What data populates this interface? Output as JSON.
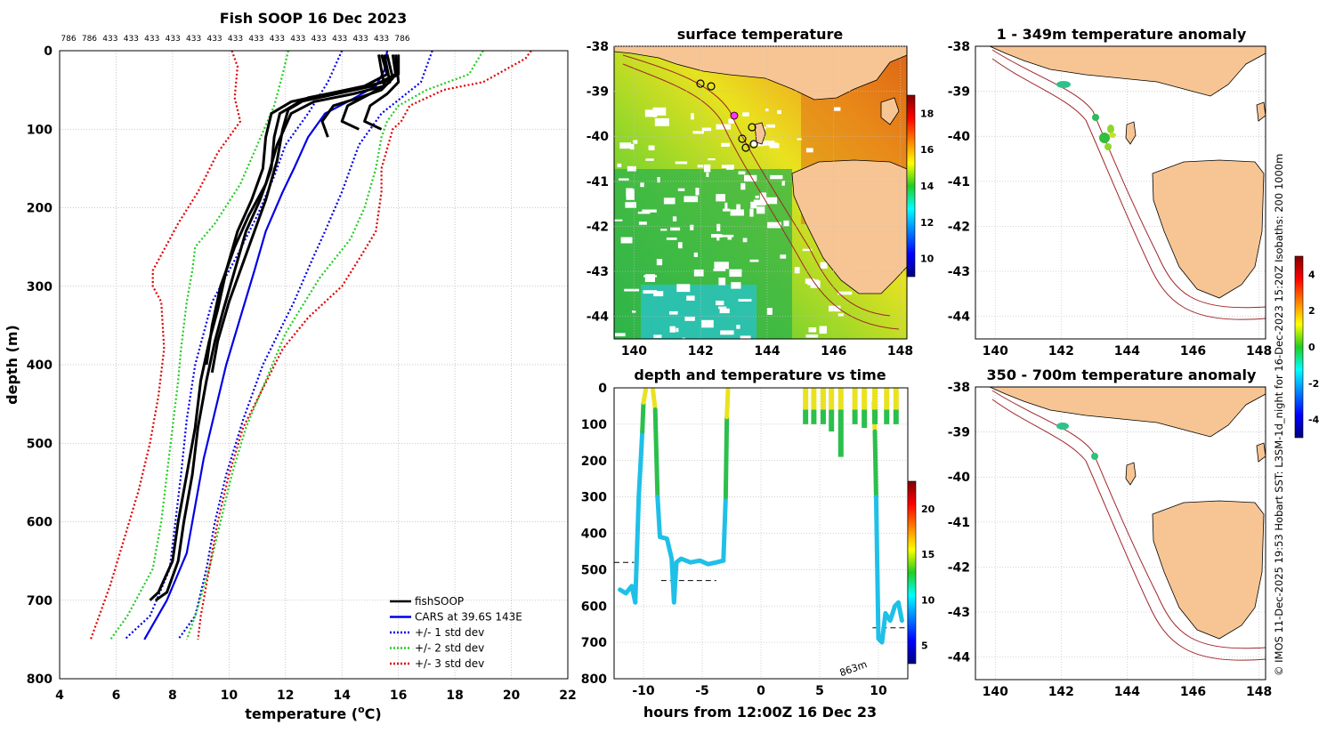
{
  "chart_data": [
    {
      "type": "line",
      "title": "Fish SOOP 16 Dec 2023",
      "top_counts": [
        "786",
        "786",
        "433",
        "433",
        "433",
        "433",
        "433",
        "433",
        "433",
        "433",
        "433",
        "433",
        "433",
        "433",
        "433",
        "433",
        "786"
      ],
      "xlabel": "temperature (",
      "xlabel_sup": "o",
      "xlabel_tail": "C)",
      "ylabel": "depth (m)",
      "xlim": [
        4,
        22
      ],
      "ylim": [
        0,
        800
      ],
      "xticks": [
        "4",
        "6",
        "8",
        "10",
        "12",
        "14",
        "16",
        "18",
        "20",
        "22"
      ],
      "yticks": [
        "0",
        "100",
        "200",
        "300",
        "400",
        "500",
        "600",
        "700",
        "800"
      ],
      "legend": [
        {
          "label": "fishSOOP",
          "color": "#000000",
          "style": "solid"
        },
        {
          "label": "CARS at 39.6S 143E",
          "color": "#0000e6",
          "style": "solid"
        },
        {
          "label": "+/- 1 std dev",
          "color": "#0000e6",
          "style": "dotted"
        },
        {
          "label": "+/- 2 std dev",
          "color": "#22cc22",
          "style": "dotted"
        },
        {
          "label": "+/- 3 std dev",
          "color": "#e00000",
          "style": "dotted"
        }
      ],
      "series": [
        {
          "name": "CARS mean",
          "color": "#0000e6",
          "style": "solid",
          "points": [
            [
              15.6,
              0
            ],
            [
              15.5,
              25
            ],
            [
              15.2,
              45
            ],
            [
              14.2,
              65
            ],
            [
              13.4,
              80
            ],
            [
              12.8,
              110
            ],
            [
              12.3,
              150
            ],
            [
              11.9,
              180
            ],
            [
              11.3,
              230
            ],
            [
              10.9,
              280
            ],
            [
              10.4,
              340
            ],
            [
              9.9,
              400
            ],
            [
              9.5,
              460
            ],
            [
              9.1,
              520
            ],
            [
              8.8,
              580
            ],
            [
              8.5,
              640
            ],
            [
              7.8,
              700
            ],
            [
              7.0,
              750
            ]
          ]
        },
        {
          "name": "+1 std",
          "color": "#0000e6",
          "style": "dotted",
          "points": [
            [
              17.2,
              0
            ],
            [
              16.8,
              40
            ],
            [
              15.4,
              80
            ],
            [
              14.6,
              120
            ],
            [
              14.0,
              180
            ],
            [
              13.4,
              230
            ],
            [
              12.9,
              270
            ],
            [
              12.3,
              320
            ],
            [
              11.2,
              400
            ],
            [
              10.5,
              470
            ],
            [
              9.9,
              540
            ],
            [
              9.5,
              600
            ],
            [
              9.2,
              660
            ],
            [
              8.8,
              720
            ],
            [
              8.2,
              750
            ]
          ]
        },
        {
          "name": "-1 std",
          "color": "#0000e6",
          "style": "dotted",
          "points": [
            [
              14.0,
              0
            ],
            [
              13.5,
              40
            ],
            [
              12.8,
              80
            ],
            [
              12.0,
              120
            ],
            [
              11.6,
              160
            ],
            [
              11.0,
              210
            ],
            [
              10.3,
              260
            ],
            [
              9.4,
              320
            ],
            [
              8.8,
              400
            ],
            [
              8.5,
              470
            ],
            [
              8.3,
              540
            ],
            [
              8.1,
              600
            ],
            [
              7.9,
              660
            ],
            [
              7.2,
              720
            ],
            [
              6.3,
              750
            ]
          ]
        },
        {
          "name": "+2 std",
          "color": "#22cc22",
          "style": "dotted",
          "points": [
            [
              19.0,
              0
            ],
            [
              18.5,
              30
            ],
            [
              17.0,
              50
            ],
            [
              16.0,
              70
            ],
            [
              15.6,
              90
            ],
            [
              15.4,
              110
            ],
            [
              15.2,
              150
            ],
            [
              14.8,
              200
            ],
            [
              14.3,
              240
            ],
            [
              13.2,
              290
            ],
            [
              12.0,
              360
            ],
            [
              11.3,
              420
            ],
            [
              10.6,
              480
            ],
            [
              10.1,
              540
            ],
            [
              9.7,
              600
            ],
            [
              9.3,
              660
            ],
            [
              8.8,
              720
            ],
            [
              8.5,
              750
            ]
          ]
        },
        {
          "name": "-2 std",
          "color": "#22cc22",
          "style": "dotted",
          "points": [
            [
              12.1,
              0
            ],
            [
              11.9,
              30
            ],
            [
              11.6,
              70
            ],
            [
              11.0,
              120
            ],
            [
              10.4,
              170
            ],
            [
              9.5,
              220
            ],
            [
              8.8,
              250
            ],
            [
              8.7,
              280
            ],
            [
              8.5,
              320
            ],
            [
              8.3,
              380
            ],
            [
              8.2,
              420
            ],
            [
              8.0,
              480
            ],
            [
              7.8,
              540
            ],
            [
              7.6,
              600
            ],
            [
              7.3,
              660
            ],
            [
              6.4,
              720
            ],
            [
              5.8,
              750
            ]
          ]
        },
        {
          "name": "+3 std",
          "color": "#e00000",
          "style": "dotted",
          "points": [
            [
              20.7,
              0
            ],
            [
              20.5,
              10
            ],
            [
              19.0,
              40
            ],
            [
              17.6,
              50
            ],
            [
              16.4,
              70
            ],
            [
              16.1,
              90
            ],
            [
              15.8,
              100
            ],
            [
              15.4,
              150
            ],
            [
              15.4,
              180
            ],
            [
              15.2,
              230
            ],
            [
              14.7,
              260
            ],
            [
              14.0,
              300
            ],
            [
              12.8,
              340
            ],
            [
              11.9,
              380
            ],
            [
              11.2,
              430
            ],
            [
              10.5,
              480
            ],
            [
              10.0,
              540
            ],
            [
              9.6,
              600
            ],
            [
              9.3,
              660
            ],
            [
              9.0,
              720
            ],
            [
              8.9,
              750
            ]
          ]
        },
        {
          "name": "-3 std",
          "color": "#e00000",
          "style": "dotted",
          "points": [
            [
              10.1,
              0
            ],
            [
              10.3,
              20
            ],
            [
              10.2,
              60
            ],
            [
              10.4,
              90
            ],
            [
              9.6,
              130
            ],
            [
              8.9,
              180
            ],
            [
              8.2,
              220
            ],
            [
              7.6,
              260
            ],
            [
              7.3,
              280
            ],
            [
              7.3,
              300
            ],
            [
              7.6,
              320
            ],
            [
              7.7,
              380
            ],
            [
              7.5,
              440
            ],
            [
              7.2,
              500
            ],
            [
              6.8,
              560
            ],
            [
              6.3,
              620
            ],
            [
              5.8,
              680
            ],
            [
              5.1,
              750
            ]
          ]
        },
        {
          "name": "fishSOOP cast A",
          "color": "#000000",
          "style": "solid",
          "points": [
            [
              15.4,
              5
            ],
            [
              15.6,
              30
            ],
            [
              14.8,
              45
            ],
            [
              13.5,
              55
            ],
            [
              12.2,
              65
            ],
            [
              11.5,
              80
            ],
            [
              11.3,
              110
            ],
            [
              11.2,
              150
            ],
            [
              10.8,
              190
            ],
            [
              10.3,
              230
            ],
            [
              9.9,
              280
            ],
            [
              9.6,
              330
            ],
            [
              9.3,
              370
            ],
            [
              9.0,
              420
            ],
            [
              8.8,
              480
            ],
            [
              8.5,
              540
            ],
            [
              8.2,
              600
            ],
            [
              8.0,
              650
            ],
            [
              7.5,
              690
            ],
            [
              7.2,
              700
            ]
          ]
        },
        {
          "name": "fishSOOP cast B",
          "color": "#000000",
          "style": "solid",
          "points": [
            [
              15.8,
              5
            ],
            [
              15.9,
              30
            ],
            [
              15.1,
              45
            ],
            [
              13.8,
              55
            ],
            [
              12.5,
              65
            ],
            [
              11.8,
              80
            ],
            [
              11.6,
              110
            ],
            [
              11.5,
              150
            ],
            [
              11.1,
              190
            ],
            [
              10.6,
              230
            ],
            [
              10.2,
              280
            ],
            [
              9.8,
              330
            ],
            [
              9.5,
              370
            ],
            [
              9.2,
              420
            ],
            [
              8.9,
              480
            ],
            [
              8.7,
              540
            ],
            [
              8.4,
              600
            ],
            [
              8.2,
              650
            ],
            [
              7.8,
              690
            ],
            [
              7.4,
              700
            ]
          ]
        },
        {
          "name": "fishSOOP cast C",
          "color": "#000000",
          "style": "solid",
          "points": [
            [
              16.0,
              5
            ],
            [
              16.0,
              30
            ],
            [
              15.5,
              40
            ],
            [
              14.2,
              50
            ],
            [
              12.8,
              60
            ],
            [
              12.1,
              75
            ],
            [
              11.9,
              100
            ],
            [
              11.7,
              140
            ],
            [
              11.3,
              190
            ],
            [
              10.9,
              230
            ],
            [
              10.5,
              270
            ],
            [
              10.0,
              320
            ],
            [
              9.6,
              370
            ],
            [
              9.4,
              410
            ]
          ]
        },
        {
          "name": "fishSOOP cast D",
          "color": "#000000",
          "style": "solid",
          "points": [
            [
              15.6,
              5
            ],
            [
              15.8,
              35
            ],
            [
              15.4,
              50
            ],
            [
              14.6,
              60
            ],
            [
              13.7,
              70
            ],
            [
              13.3,
              90
            ],
            [
              13.5,
              110
            ]
          ]
        },
        {
          "name": "fishSOOP cast E",
          "color": "#000000",
          "style": "solid",
          "points": [
            [
              15.9,
              5
            ],
            [
              16.0,
              40
            ],
            [
              15.6,
              55
            ],
            [
              15.0,
              70
            ],
            [
              14.8,
              90
            ],
            [
              15.4,
              100
            ]
          ]
        },
        {
          "name": "fishSOOP cast F",
          "color": "#000000",
          "style": "solid",
          "points": [
            [
              15.5,
              5
            ],
            [
              15.7,
              40
            ],
            [
              15.0,
              55
            ],
            [
              14.2,
              70
            ],
            [
              14.0,
              90
            ],
            [
              14.6,
              100
            ]
          ]
        },
        {
          "name": "fishSOOP cast G",
          "color": "#000000",
          "style": "solid",
          "points": [
            [
              15.3,
              5
            ],
            [
              15.5,
              45
            ],
            [
              14.4,
              55
            ],
            [
              13.0,
              65
            ],
            [
              12.2,
              80
            ],
            [
              11.7,
              120
            ],
            [
              11.3,
              170
            ],
            [
              10.7,
              210
            ],
            [
              10.2,
              250
            ],
            [
              9.7,
              300
            ],
            [
              9.4,
              350
            ],
            [
              9.2,
              400
            ]
          ]
        }
      ]
    },
    {
      "type": "heatmap",
      "title": "surface temperature",
      "xticks": [
        "140",
        "142",
        "144",
        "146",
        "148"
      ],
      "yticks": [
        "-38",
        "-39",
        "-40",
        "-41",
        "-42",
        "-43",
        "-44"
      ],
      "xlim": [
        139.4,
        148.2
      ],
      "ylim": [
        -44.5,
        -38
      ],
      "colorbar": {
        "ticks": [
          "18",
          "16",
          "14",
          "12",
          "10"
        ],
        "range": [
          9,
          19
        ]
      }
    },
    {
      "type": "line",
      "title": "depth and temperature vs time",
      "xlabel": "hours from 12:00Z 16 Dec 23",
      "xticks": [
        "-10",
        "-5",
        "0",
        "5",
        "10"
      ],
      "yticks": [
        "0",
        "100",
        "200",
        "300",
        "400",
        "500",
        "600",
        "700",
        "800"
      ],
      "xlim": [
        -12.5,
        12.5
      ],
      "ylim": [
        0,
        800
      ],
      "annotation": "863m",
      "colorbar": {
        "ticks": [
          "20",
          "15",
          "10",
          "5"
        ],
        "range": [
          3,
          23
        ]
      }
    },
    {
      "type": "heatmap",
      "title": "1 - 349m temperature anomaly",
      "xticks": [
        "140",
        "142",
        "144",
        "146",
        "148"
      ],
      "yticks": [
        "-38",
        "-39",
        "-40",
        "-41",
        "-42",
        "-43",
        "-44"
      ],
      "xlim": [
        139.4,
        148.2
      ],
      "ylim": [
        -44.5,
        -38
      ]
    },
    {
      "type": "heatmap",
      "title": "350 - 700m temperature anomaly",
      "xticks": [
        "140",
        "142",
        "144",
        "146",
        "148"
      ],
      "yticks": [
        "-38",
        "-39",
        "-40",
        "-41",
        "-42",
        "-43",
        "-44"
      ],
      "xlim": [
        139.4,
        148.2
      ],
      "ylim": [
        -44.5,
        -38
      ]
    }
  ],
  "anomaly_colorbar": {
    "ticks": [
      "4",
      "2",
      "0",
      "-2",
      "-4"
    ],
    "range": [
      -5,
      5
    ]
  },
  "credit": "© IMOS 11-Dec-2025 19:53 Hobart SST: L3SM-1d_night for 16-Dec-2023 15:20Z Isobaths: 200  1000m"
}
